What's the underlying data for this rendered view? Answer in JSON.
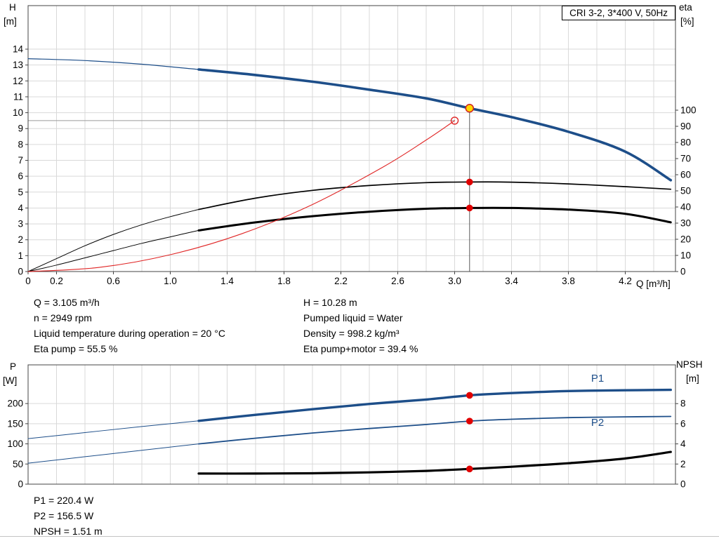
{
  "axis_titles": {
    "h": "H",
    "h_unit": "[m]",
    "eta": "eta",
    "eta_unit": "[%]",
    "q": "Q [m³/h]",
    "p": "P",
    "p_unit": "[W]",
    "npsh": "NPSH",
    "npsh_unit": "[m]"
  },
  "operating_info": {
    "left": [
      "Q = 3.105 m³/h",
      "n = 2949 rpm",
      "Liquid temperature during operation = 20 °C",
      "Eta pump = 55.5 %"
    ],
    "right": [
      "H = 10.28 m",
      "Pumped liquid = Water",
      "Density = 998.2 kg/m³",
      "Eta pump+motor = 39.4 %"
    ]
  },
  "power_info": [
    "P1 = 220.4 W",
    "P2 = 156.5 W",
    "NPSH = 1.51 m"
  ],
  "chart_data": [
    {
      "id": "qh-eta-chart",
      "type": "line",
      "title": "CRI 3-2, 3*400 V, 50Hz",
      "geom": {
        "x0": 40,
        "x1": 962,
        "yTop": 8,
        "yBot": 387
      },
      "x": {
        "min": 0,
        "max": 4.553,
        "grid_step": 0.2,
        "label": "Q [m³/h]",
        "ticks": [
          {
            "v": 0,
            "l": "0"
          },
          {
            "v": 0.2,
            "l": "0.2"
          },
          {
            "v": 0.6,
            "l": "0.6"
          },
          {
            "v": 1.0,
            "l": "1.0"
          },
          {
            "v": 1.4,
            "l": "1.4"
          },
          {
            "v": 1.8,
            "l": "1.8"
          },
          {
            "v": 2.2,
            "l": "2.2"
          },
          {
            "v": 2.6,
            "l": "2.6"
          },
          {
            "v": 3.0,
            "l": "3.0"
          },
          {
            "v": 3.4,
            "l": "3.4"
          },
          {
            "v": 3.8,
            "l": "3.8"
          },
          {
            "v": 4.2,
            "l": "4.2"
          }
        ]
      },
      "axes": {
        "left": {
          "label": "H [m]",
          "min": 0,
          "max": 16.74,
          "ticks": [
            0,
            1,
            2,
            3,
            4,
            5,
            6,
            7,
            8,
            9,
            10,
            11,
            12,
            13,
            14
          ],
          "grid": true
        },
        "right": {
          "label": "eta [%]",
          "min": 0,
          "max": 164.8,
          "ticks": [
            0,
            10,
            20,
            30,
            40,
            50,
            60,
            70,
            80,
            90,
            100
          ],
          "grid": false
        }
      },
      "series": [
        {
          "name": "qh-curve-lead",
          "axis": "left",
          "color": "#1d4e89",
          "width": 1.2,
          "points": [
            [
              0,
              13.4
            ],
            [
              0.4,
              13.28
            ],
            [
              0.8,
              13.05
            ],
            [
              1.2,
              12.72
            ]
          ]
        },
        {
          "name": "qh-curve",
          "axis": "left",
          "color": "#1d4e89",
          "width": 3.6,
          "points": [
            [
              1.2,
              12.72
            ],
            [
              1.6,
              12.37
            ],
            [
              2.0,
              11.95
            ],
            [
              2.4,
              11.45
            ],
            [
              2.8,
              10.9
            ],
            [
              3.105,
              10.28
            ],
            [
              3.4,
              9.72
            ],
            [
              3.8,
              8.8
            ],
            [
              4.2,
              7.55
            ],
            [
              4.52,
              5.75
            ]
          ]
        },
        {
          "name": "eta-pump-curve-lead",
          "axis": "right",
          "color": "#000000",
          "width": 1,
          "points": [
            [
              0,
              0
            ],
            [
              0.2,
              8
            ],
            [
              0.4,
              16
            ],
            [
              0.6,
              23
            ],
            [
              0.8,
              29
            ],
            [
              1.0,
              34
            ],
            [
              1.2,
              38.5
            ]
          ]
        },
        {
          "name": "eta-pump-curve",
          "axis": "right",
          "color": "#000000",
          "width": 1.7,
          "points": [
            [
              1.2,
              38.5
            ],
            [
              1.6,
              45.5
            ],
            [
              2.0,
              50.3
            ],
            [
              2.4,
              53.3
            ],
            [
              2.8,
              55.1
            ],
            [
              3.105,
              55.5
            ],
            [
              3.4,
              55.4
            ],
            [
              3.8,
              54.3
            ],
            [
              4.2,
              52.6
            ],
            [
              4.52,
              51.0
            ]
          ]
        },
        {
          "name": "eta-pump-motor-curve-lead",
          "axis": "right",
          "color": "#000000",
          "width": 1,
          "points": [
            [
              0,
              0
            ],
            [
              0.2,
              4
            ],
            [
              0.4,
              8.5
            ],
            [
              0.6,
              13
            ],
            [
              0.8,
              17.5
            ],
            [
              1.0,
              21.5
            ],
            [
              1.2,
              25.5
            ]
          ]
        },
        {
          "name": "eta-pump-motor-curve",
          "axis": "right",
          "color": "#000000",
          "width": 3,
          "points": [
            [
              1.2,
              25.5
            ],
            [
              1.6,
              30.5
            ],
            [
              2.0,
              34.3
            ],
            [
              2.4,
              37.1
            ],
            [
              2.8,
              38.9
            ],
            [
              3.105,
              39.4
            ],
            [
              3.4,
              39.4
            ],
            [
              3.8,
              38.4
            ],
            [
              4.2,
              35.8
            ],
            [
              4.52,
              30.5
            ]
          ]
        },
        {
          "name": "system-curve",
          "axis": "left",
          "color": "#e02525",
          "width": 1.1,
          "points": [
            [
              0,
              0
            ],
            [
              0.5,
              0.26
            ],
            [
              1.0,
              1.06
            ],
            [
              1.5,
              2.37
            ],
            [
              2.0,
              4.22
            ],
            [
              2.5,
              6.6
            ],
            [
              2.8,
              8.28
            ],
            [
              3.0,
              9.5
            ]
          ]
        }
      ],
      "lines": [
        {
          "name": "duty-head-line",
          "axis": "left",
          "p1": [
            0,
            9.5
          ],
          "p2": [
            3.0,
            9.5
          ],
          "color": "#9a9a9a",
          "width": 1
        },
        {
          "name": "duty-flow-line",
          "axis": "left",
          "p1": [
            3.105,
            10.28
          ],
          "p2": [
            3.105,
            0
          ],
          "color": "#5a5a5a",
          "width": 1
        }
      ],
      "markers": [
        {
          "name": "requested-duty-point",
          "axis": "left",
          "q": 3.0,
          "v": 9.5,
          "style": "open",
          "color": "#e02525",
          "r": 5
        },
        {
          "name": "operating-point",
          "axis": "left",
          "q": 3.105,
          "v": 10.28,
          "style": "yellow",
          "r": 5.5
        },
        {
          "name": "eta-pump-point",
          "axis": "right",
          "q": 3.105,
          "v": 55.5,
          "style": "dot",
          "color": "#e00000",
          "r": 4.8
        },
        {
          "name": "eta-pump-motor-point",
          "axis": "right",
          "q": 3.105,
          "v": 39.4,
          "style": "dot",
          "color": "#e00000",
          "r": 4.8
        }
      ],
      "labels": []
    },
    {
      "id": "power-npsh-chart",
      "type": "line",
      "title": "",
      "geom": {
        "x0": 40,
        "x1": 962,
        "yTop": 520,
        "yBot": 690
      },
      "x": {
        "min": 0,
        "max": 4.553,
        "grid_step": 0.2,
        "label": "",
        "ticks": []
      },
      "axes": {
        "left": {
          "label": "P [W]",
          "min": 0,
          "max": 296,
          "ticks": [
            0,
            50,
            100,
            150,
            200
          ],
          "grid": true
        },
        "right": {
          "label": "NPSH [m]",
          "min": 0,
          "max": 11.85,
          "ticks": [
            0,
            2,
            4,
            6,
            8
          ],
          "grid": false
        }
      },
      "series": [
        {
          "name": "p1-curve-lead",
          "axis": "left",
          "color": "#1d4e89",
          "width": 1,
          "points": [
            [
              0,
              113
            ],
            [
              0.4,
              128
            ],
            [
              0.8,
              143
            ],
            [
              1.2,
              157
            ]
          ]
        },
        {
          "name": "p1-curve",
          "axis": "left",
          "color": "#1d4e89",
          "width": 3.4,
          "points": [
            [
              1.2,
              157
            ],
            [
              1.6,
              172
            ],
            [
              2.0,
              186
            ],
            [
              2.4,
              199
            ],
            [
              2.8,
              210
            ],
            [
              3.105,
              220.4
            ],
            [
              3.4,
              226
            ],
            [
              3.8,
              231
            ],
            [
              4.2,
              233
            ],
            [
              4.52,
              234
            ]
          ]
        },
        {
          "name": "p2-curve-lead",
          "axis": "left",
          "color": "#1d4e89",
          "width": 1,
          "points": [
            [
              0,
              52
            ],
            [
              0.4,
              68
            ],
            [
              0.8,
              84
            ],
            [
              1.2,
              100
            ]
          ]
        },
        {
          "name": "p2-curve",
          "axis": "left",
          "color": "#1d4e89",
          "width": 1.8,
          "points": [
            [
              1.2,
              100
            ],
            [
              1.6,
              114
            ],
            [
              2.0,
              127
            ],
            [
              2.4,
              138
            ],
            [
              2.8,
              148
            ],
            [
              3.105,
              156.5
            ],
            [
              3.4,
              161
            ],
            [
              3.8,
              165
            ],
            [
              4.2,
              167
            ],
            [
              4.52,
              168
            ]
          ]
        },
        {
          "name": "npsh-curve",
          "axis": "right",
          "color": "#000000",
          "width": 3.2,
          "points": [
            [
              1.2,
              1.05
            ],
            [
              1.6,
              1.05
            ],
            [
              2.0,
              1.08
            ],
            [
              2.4,
              1.17
            ],
            [
              2.8,
              1.32
            ],
            [
              3.105,
              1.51
            ],
            [
              3.4,
              1.73
            ],
            [
              3.8,
              2.08
            ],
            [
              4.2,
              2.55
            ],
            [
              4.52,
              3.2
            ]
          ]
        }
      ],
      "lines": [],
      "markers": [
        {
          "name": "p1-point",
          "axis": "left",
          "q": 3.105,
          "v": 220.4,
          "style": "dot",
          "color": "#e00000",
          "r": 4.8
        },
        {
          "name": "p2-point",
          "axis": "left",
          "q": 3.105,
          "v": 156.5,
          "style": "dot",
          "color": "#e00000",
          "r": 4.8
        },
        {
          "name": "npsh-point",
          "axis": "right",
          "q": 3.105,
          "v": 1.51,
          "style": "dot",
          "color": "#e00000",
          "r": 4.8
        }
      ],
      "labels": [
        {
          "name": "p1-series-label",
          "text": "P1",
          "axis": "left",
          "q": 3.96,
          "v": 263,
          "color": "#1d4e89"
        },
        {
          "name": "p2-series-label",
          "text": "P2",
          "axis": "left",
          "q": 3.96,
          "v": 153,
          "color": "#1d4e89"
        }
      ]
    }
  ]
}
